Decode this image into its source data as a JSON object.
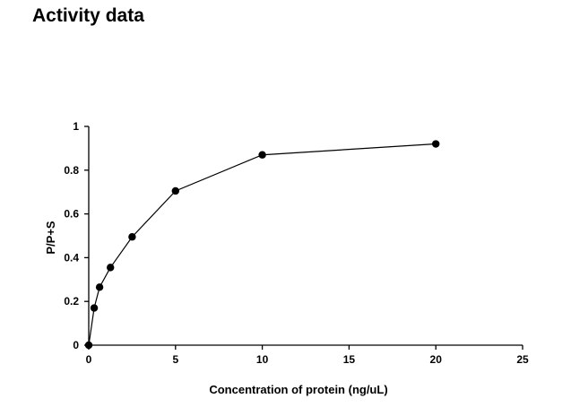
{
  "page": {
    "title": "Activity data"
  },
  "chart_data": {
    "type": "line",
    "title": "",
    "xlabel": "Concentration of protein (ng/uL)",
    "ylabel": "P/P+S",
    "xlim": [
      0,
      25
    ],
    "ylim": [
      0,
      1
    ],
    "x_ticks": [
      "0",
      "5",
      "10",
      "15",
      "20",
      "25"
    ],
    "y_ticks": [
      "0",
      "0.2",
      "0.4",
      "0.6",
      "0.8",
      "1"
    ],
    "grid": false,
    "legend": "none",
    "series": [
      {
        "x": [
          0,
          0.3125,
          0.625,
          1.25,
          2.5,
          5,
          10,
          20
        ],
        "y": [
          0,
          0.17,
          0.265,
          0.355,
          0.495,
          0.705,
          0.87,
          0.92
        ]
      }
    ],
    "colors": {
      "line": "#000000",
      "marker": "#000000"
    }
  }
}
